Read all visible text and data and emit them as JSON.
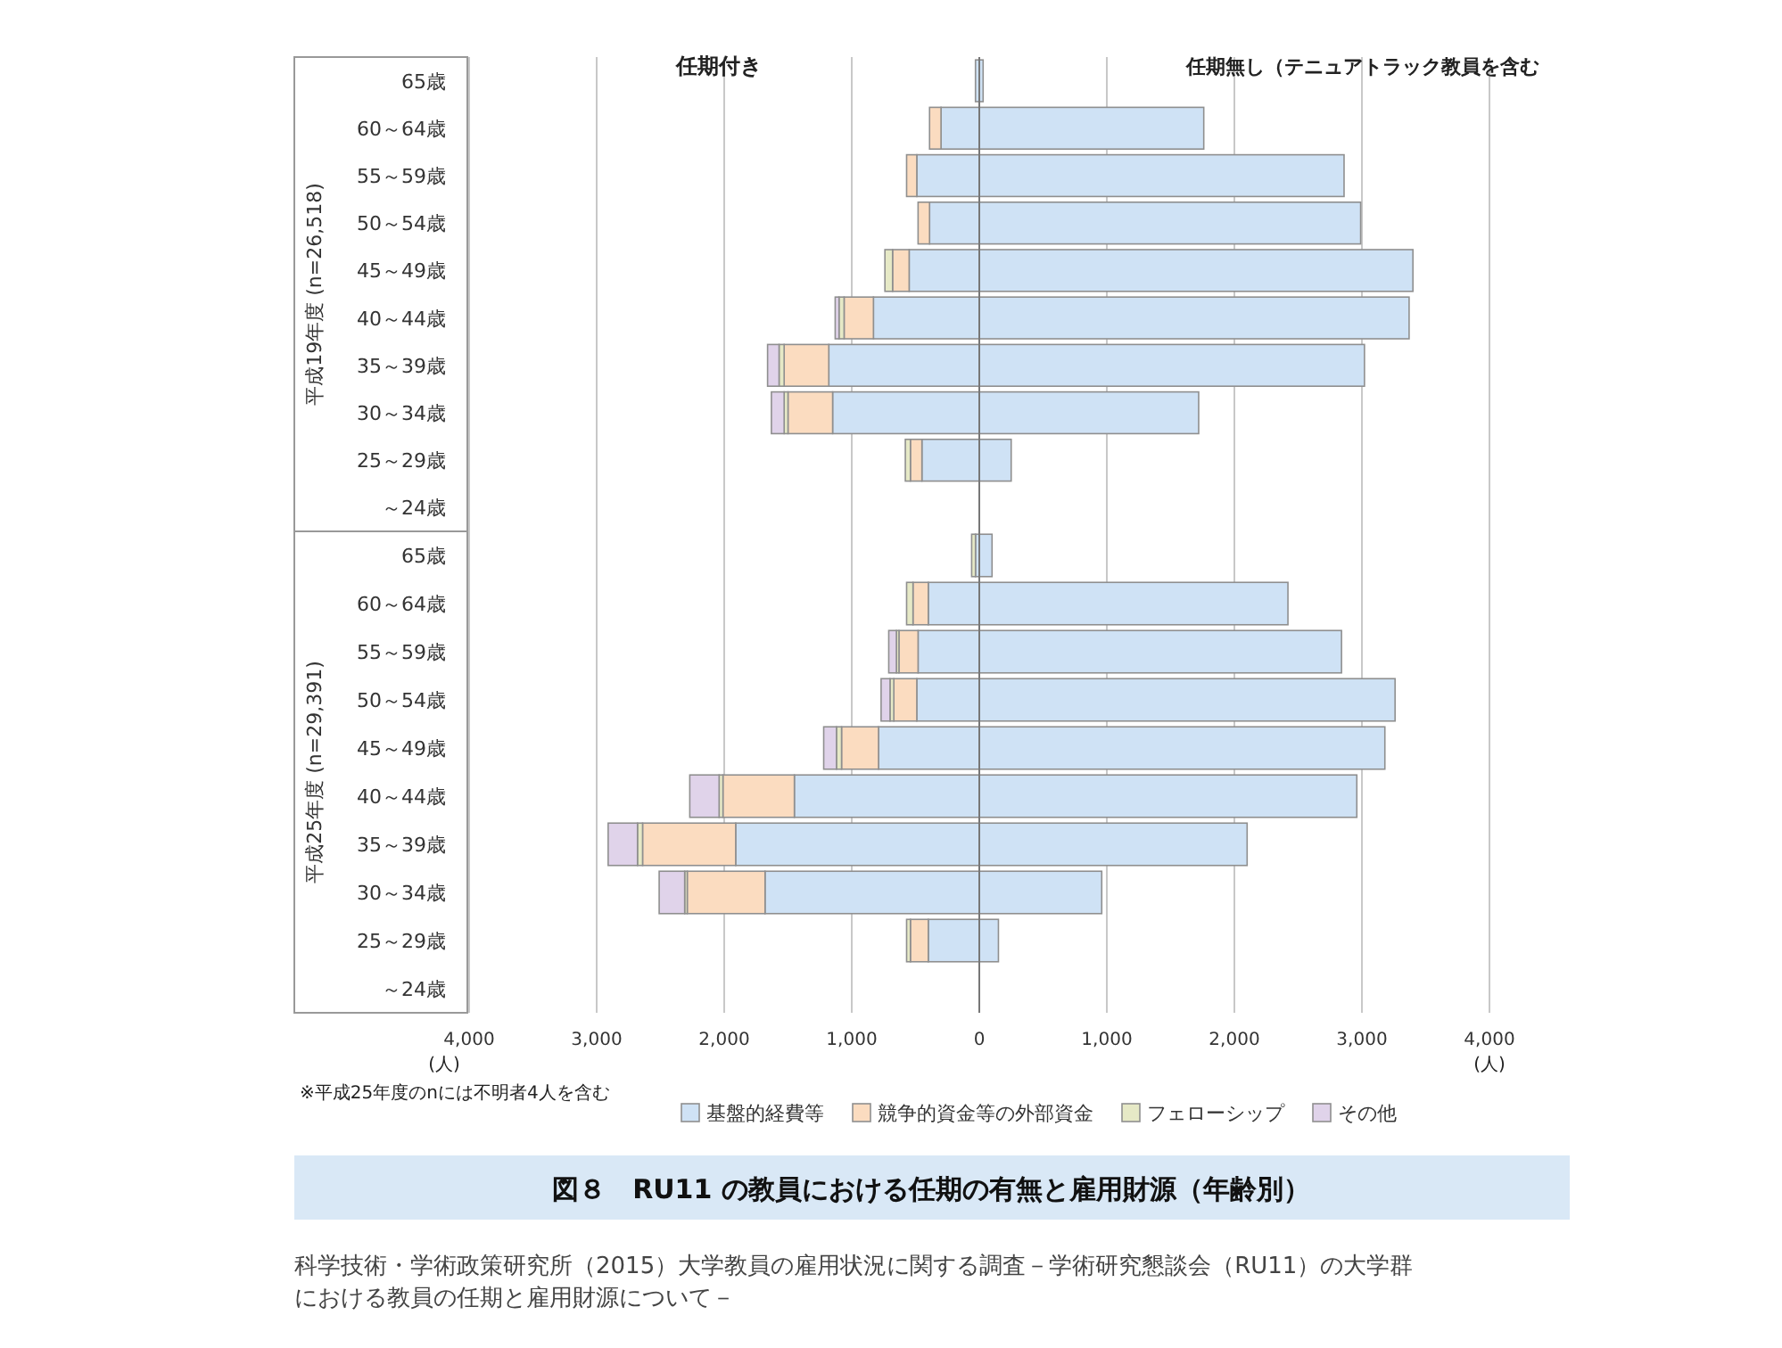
{
  "chart_data": [
    {
      "type": "bar",
      "orientation": "horizontal",
      "stacked": true,
      "grid": "x",
      "tick_labels": "y",
      "ylabel": "平成19年度 (n=26,518)",
      "annotations": [
        "任期付き",
        "任期無し（テニュアトラック教員を含む"
      ],
      "categories": [
        "65歳",
        "60～64歳",
        "55～59歳",
        "50～54歳",
        "45～49歳",
        "40～44歳",
        "35～39歳",
        "30～34歳",
        "25～29歳",
        "～24歳"
      ],
      "xlim": [
        -4000,
        4000
      ],
      "xticks": [
        {
          "value": -4000,
          "label": null
        },
        {
          "value": -3000,
          "label": null
        },
        {
          "value": -2000,
          "label": null
        },
        {
          "value": -1000,
          "label": null
        },
        {
          "value": 0,
          "label": null
        },
        {
          "value": 1000,
          "label": null
        },
        {
          "value": 2000,
          "label": null
        },
        {
          "value": 3000,
          "label": null
        },
        {
          "value": 4000,
          "label": null
        }
      ],
      "series": [
        {
          "color": "#cfe2f5",
          "values": [
            -30,
            -300,
            -490,
            -390,
            -550,
            -830,
            -1180,
            -1150,
            -450,
            null
          ]
        },
        {
          "color": "#fbdcc0",
          "values": [
            null,
            -90,
            -80,
            -90,
            -130,
            -230,
            -350,
            -350,
            -90,
            null
          ]
        },
        {
          "color": "#e6e9c6",
          "values": [
            null,
            null,
            null,
            null,
            -60,
            -40,
            -40,
            -30,
            -40,
            null
          ]
        },
        {
          "color": "#e0d3ea",
          "values": [
            null,
            null,
            null,
            null,
            null,
            -30,
            -90,
            -100,
            null,
            null
          ]
        },
        {
          "color": "#cfe2f5",
          "values": [
            30,
            1760,
            2860,
            2990,
            3400,
            3370,
            3020,
            1720,
            250,
            null
          ]
        }
      ]
    },
    {
      "type": "bar",
      "orientation": "horizontal",
      "stacked": true,
      "grid": "x",
      "legend": "bottom",
      "ylabel": "平成25年度 (n=29,391)",
      "title": "図８　RU11 の教員における任期の有無と雇用財源（年齢別）",
      "annotations": [
        "(人)",
        "(人)",
        "※平成25年度のnには不明者4人を含む",
        "科学技術・学術政策研究所（2015）大学教員の雇用状況に関する調査－学術研究懇談会（RU11）の大学群における教員の任期と雇用財源について－"
      ],
      "categories": [
        "65歳",
        "60～64歳",
        "55～59歳",
        "50～54歳",
        "45～49歳",
        "40～44歳",
        "35～39歳",
        "30～34歳",
        "25～29歳",
        "～24歳"
      ],
      "xlim": [
        -4000,
        4000
      ],
      "xticks": [
        {
          "value": -4000,
          "label": "4,000"
        },
        {
          "value": -3000,
          "label": "3,000"
        },
        {
          "value": -2000,
          "label": "2,000"
        },
        {
          "value": -1000,
          "label": "1,000"
        },
        0,
        {
          "value": 1000,
          "label": "1,000"
        },
        {
          "value": 2000,
          "label": "2,000"
        },
        {
          "value": 3000,
          "label": "3,000"
        },
        {
          "value": 4000,
          "label": "4,000"
        }
      ],
      "series": [
        {
          "name": "基盤的経費等",
          "color": "#cfe2f5",
          "values": [
            -30,
            -400,
            -480,
            -490,
            -790,
            -1450,
            -1910,
            -1680,
            -400,
            null
          ]
        },
        {
          "name": "競争的資金等の外部資金",
          "color": "#fbdcc0",
          "values": [
            null,
            -120,
            -150,
            -180,
            -290,
            -560,
            -730,
            -610,
            -140,
            null
          ]
        },
        {
          "name": "フェローシップ",
          "color": "#e6e9c6",
          "values": [
            -30,
            -50,
            -20,
            -30,
            -40,
            -30,
            -40,
            -20,
            -30,
            null
          ]
        },
        {
          "name": "その他",
          "color": "#e0d3ea",
          "values": [
            null,
            null,
            -60,
            -70,
            -100,
            -230,
            -230,
            -200,
            null,
            null
          ]
        },
        {
          "color": "#cfe2f5",
          "values": [
            100,
            2420,
            2840,
            3260,
            3180,
            2960,
            2100,
            960,
            150,
            null
          ]
        }
      ]
    }
  ]
}
